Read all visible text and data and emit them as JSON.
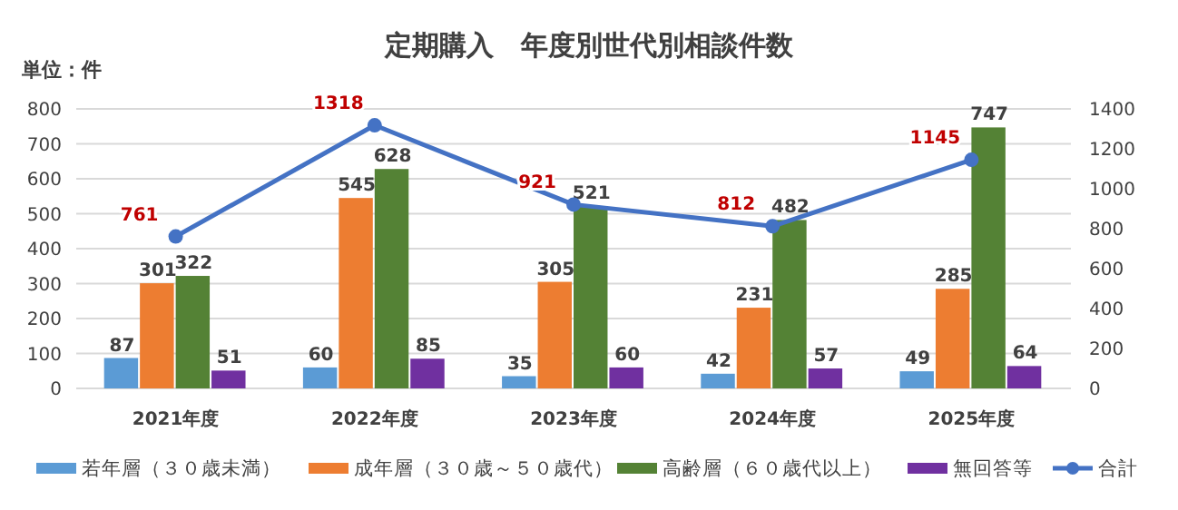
{
  "chart_data": {
    "type": "bar",
    "title": "定期購入　年度別世代別相談件数",
    "ylabel": "単位：件",
    "categories": [
      "2021年度",
      "2022年度",
      "2023年度",
      "2024年度",
      "2025年度"
    ],
    "series": [
      {
        "name": "若年層（３０歳未満）",
        "color": "#5b9bd5",
        "values": [
          87,
          60,
          35,
          42,
          49
        ]
      },
      {
        "name": "成年層（３０歳～５０歳代）",
        "color": "#ed7d31",
        "values": [
          301,
          545,
          305,
          231,
          285
        ]
      },
      {
        "name": "高齢層（６０歳代以上）",
        "color": "#548235",
        "values": [
          322,
          628,
          521,
          482,
          747
        ]
      },
      {
        "name": "無回答等",
        "color": "#7030a0",
        "values": [
          51,
          85,
          60,
          57,
          64
        ]
      },
      {
        "name": "合計",
        "color": "#4472c4",
        "type": "line",
        "axis": "y2",
        "marker": "circle",
        "values": [
          761,
          1318,
          921,
          812,
          1145
        ]
      }
    ],
    "ylim": [
      0,
      800
    ],
    "yticks": [
      0,
      100,
      200,
      300,
      400,
      500,
      600,
      700,
      800
    ],
    "y2lim": [
      0,
      1400
    ],
    "y2ticks": [
      0,
      200,
      400,
      600,
      800,
      1000,
      1200,
      1400
    ],
    "grid": "y",
    "legend": "bottom",
    "data_labels": true
  }
}
